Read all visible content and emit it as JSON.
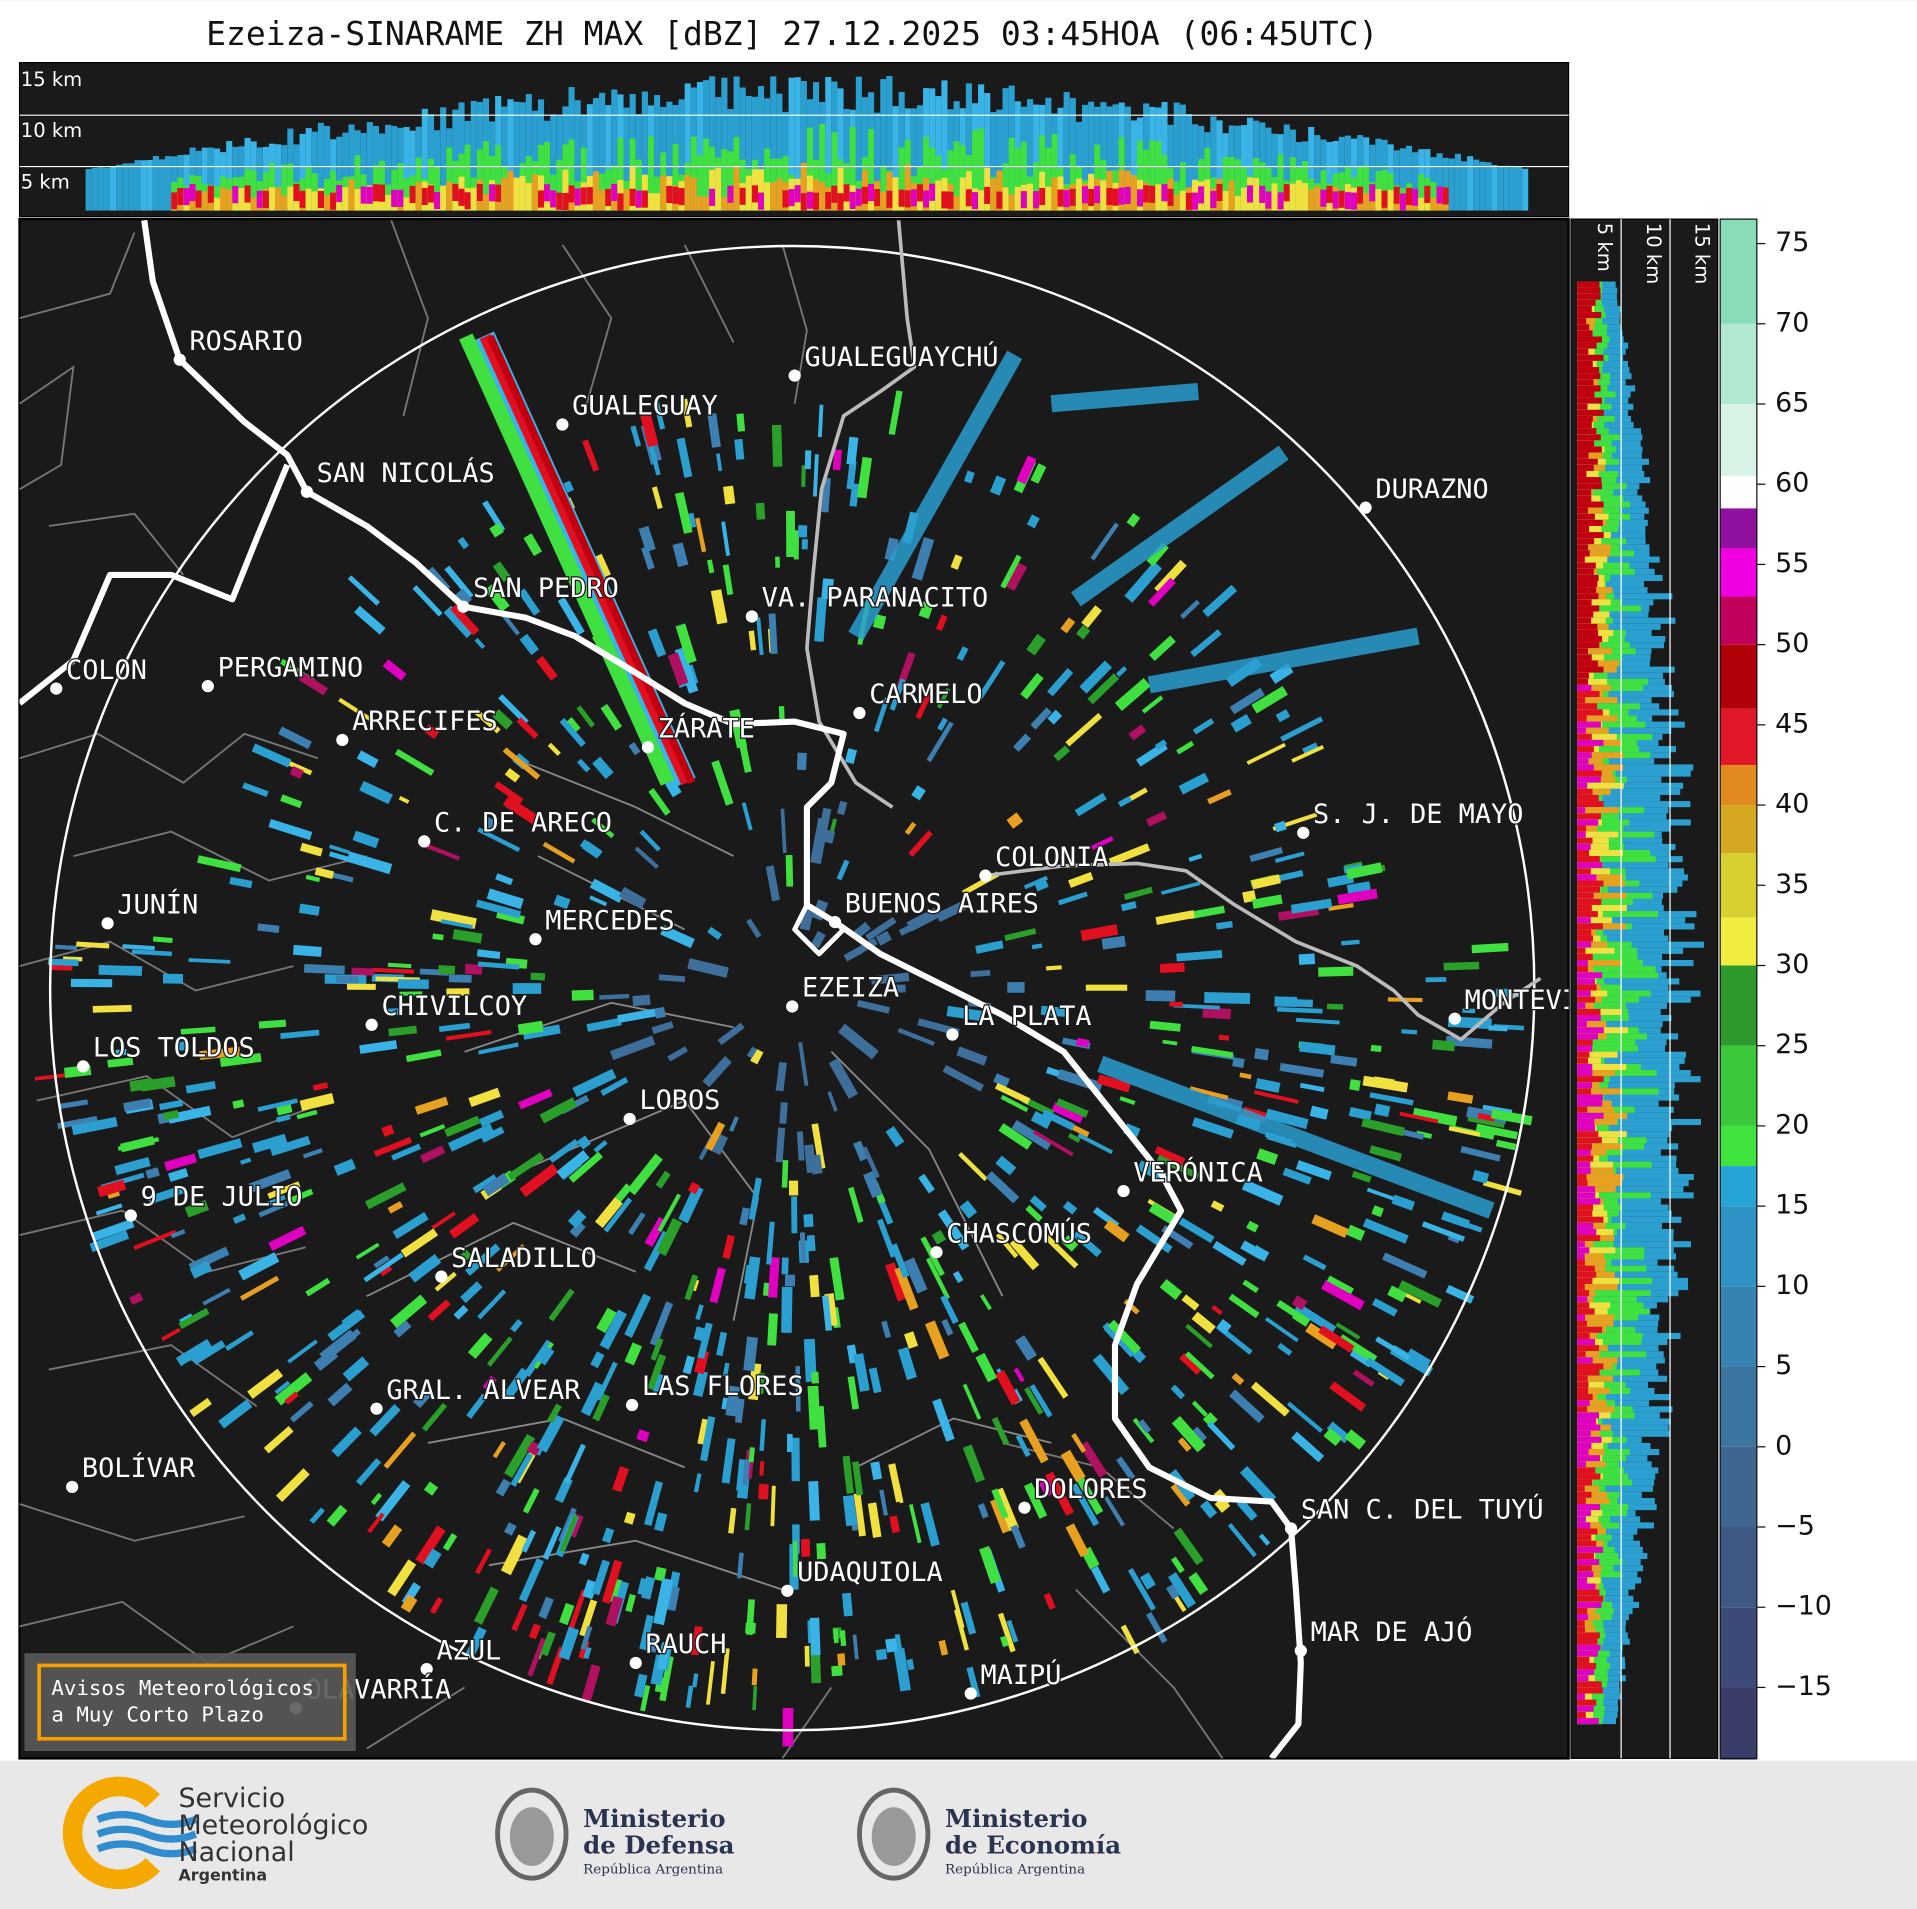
{
  "title": "Ezeiza-SINARAME ZH MAX [dBZ] 27.12.2025 03:45HOA (06:45UTC)",
  "vertical_section": {
    "altitude_labels": [
      "15 km",
      "10 km",
      "5 km"
    ]
  },
  "side_section": {
    "altitude_labels": [
      "5 km",
      "10 km",
      "15 km"
    ]
  },
  "cities": [
    "ROSARIO",
    "GUALEGUAYCHÚ",
    "GUALEGUAY",
    "SAN NICOLÁS",
    "DURAZNO",
    "SAN PEDRO",
    "VA. PARANACITO",
    "COLON",
    "PERGAMINO",
    "CARMELO",
    "ARRECIFES",
    "ZÁRATE",
    "S. J. DE MAYO",
    "C. DE ARECO",
    "COLONIA",
    "BUENOS AIRES",
    "JUNÍN",
    "MERCEDES",
    "EZEIZA",
    "CHIVILCOY",
    "MONTEVIDEO",
    "LA PLATA",
    "LOS TOLDOS",
    "LOBOS",
    "VERÓNICA",
    "9 DE JULIO",
    "CHASCOMÚS",
    "SALADILLO",
    "GRAL. ALVEAR",
    "LAS FLORES",
    "BOLÍVAR",
    "DOLORES",
    "SAN C. DEL TUYÚ",
    "UDAQUIOLA",
    "MAR DE AJÓ",
    "AZUL",
    "RAUCH",
    "OLAVARRÍA",
    "MAIPÚ"
  ],
  "colorbar": {
    "ticks": [
      {
        "value": -15,
        "label": "−15"
      },
      {
        "value": -10,
        "label": "−10"
      },
      {
        "value": -5,
        "label": "−5"
      },
      0,
      5,
      10,
      15,
      20,
      25,
      30,
      35,
      40,
      45,
      50,
      55,
      60,
      65,
      70,
      75
    ]
  },
  "notice": {
    "lines": [
      "Avisos Meteorológicos",
      "a Muy Corto Plazo"
    ]
  },
  "footer": {
    "smn": [
      "Servicio",
      "Meteorológico",
      "Nacional",
      "Argentina"
    ],
    "defensa": [
      "Ministerio",
      "de Defensa",
      "República Argentina"
    ],
    "economia": [
      "Ministerio",
      "de Economía",
      "República Argentina"
    ]
  }
}
